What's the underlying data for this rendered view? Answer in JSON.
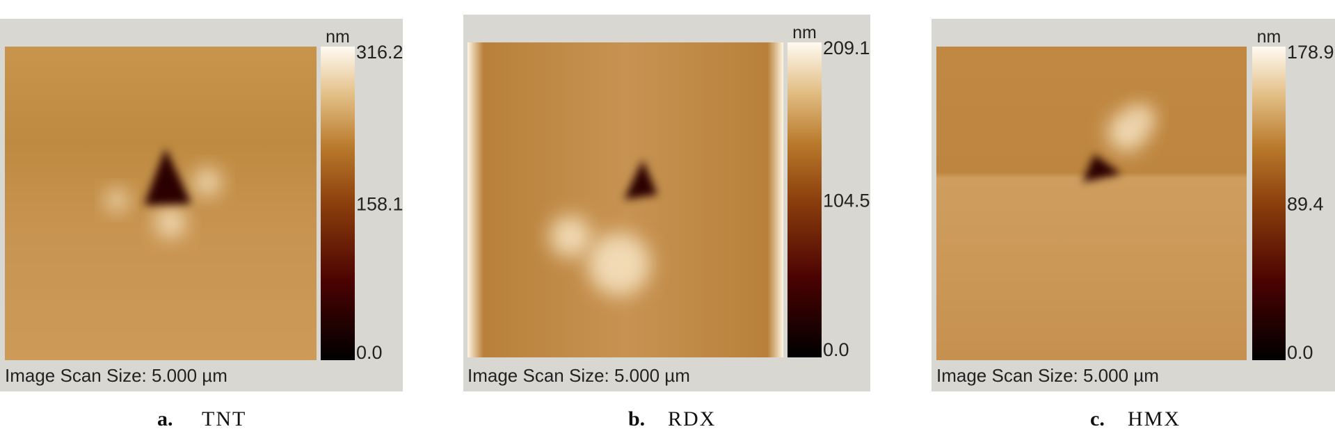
{
  "panels": [
    {
      "letter": "a.",
      "name": "TNT",
      "unit": "nm",
      "scale_max": "316.2",
      "scale_mid": "158.1",
      "scale_min": "0.0",
      "caption": "Image Scan Size: 5.000 µm"
    },
    {
      "letter": "b.",
      "name": "RDX",
      "unit": "nm",
      "scale_max": "209.1",
      "scale_mid": "104.5",
      "scale_min": "0.0",
      "caption": "Image Scan Size: 5.000 µm"
    },
    {
      "letter": "c.",
      "name": "HMX",
      "unit": "nm",
      "scale_max": "178.9",
      "scale_mid": "89.4",
      "scale_min": "0.0",
      "caption": "Image Scan Size: 5.000 µm"
    }
  ]
}
